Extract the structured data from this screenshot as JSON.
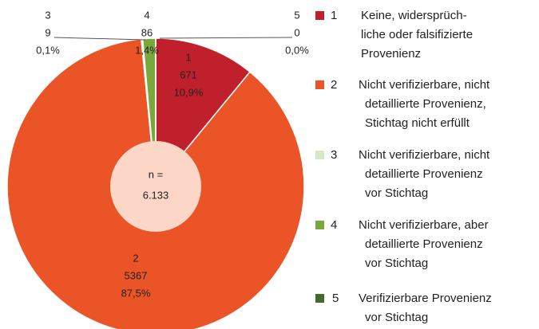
{
  "chart_data": {
    "type": "pie",
    "categories": [
      "1",
      "2",
      "3",
      "4",
      "5"
    ],
    "values": [
      671,
      5367,
      9,
      86,
      0
    ],
    "percent_labels": [
      "10,9%",
      "87,5%",
      "0,1%",
      "1,4%",
      "0,0%"
    ],
    "colors": [
      "#c0202c",
      "#ea5426",
      "#d6e8c4",
      "#79a83c",
      "#3f6b2b"
    ],
    "descriptions": [
      [
        "Keine, widersprüch-",
        "liche oder falsifizierte",
        "Provenienz"
      ],
      [
        "Nicht verifizierbare, nicht",
        "detaillierte Provenienz,",
        "Stichtag nicht erfüllt"
      ],
      [
        "Nicht verifizierbare, nicht",
        "detaillierte Provenienz",
        "vor Stichtag"
      ],
      [
        "Nicht verifizierbare, aber",
        "detaillierte Provenienz",
        "vor Stichtag"
      ],
      [
        "Verifizierbare Provenienz",
        "vor Stichtag"
      ]
    ],
    "center_label": [
      "n =",
      "6.133"
    ],
    "center_color": "#fcd6c6",
    "legend": "right"
  }
}
